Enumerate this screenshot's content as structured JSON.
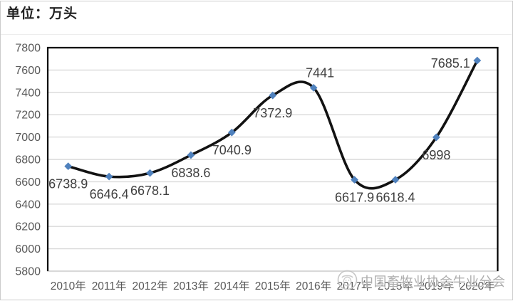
{
  "unit_label": "单位：万头",
  "watermark": {
    "text": "中国畜牧业协会牛业分会",
    "logo_icon": "association-emblem-icon"
  },
  "chart_data": {
    "type": "line",
    "smooth": true,
    "title": "单位：万头",
    "categories": [
      "2010年",
      "2011年",
      "2012年",
      "2013年",
      "2014年",
      "2015年",
      "2016年",
      "2017年",
      "2018年",
      "2019年",
      "2020年"
    ],
    "values": [
      6738.9,
      6646.4,
      6678.1,
      6838.6,
      7040.9,
      7372.9,
      7441,
      6617.9,
      6618.4,
      6998,
      7685.1
    ],
    "data_labels": [
      "6738.9",
      "6646.4",
      "6678.1",
      "6838.6",
      "7040.9",
      "7372.9",
      "7441",
      "6617.9",
      "6618.4",
      "6998",
      "7685.1"
    ],
    "label_placement": [
      "below",
      "below",
      "below",
      "below",
      "below",
      "below",
      "above",
      "below",
      "below",
      "below",
      "left"
    ],
    "ylim": [
      5800,
      7800
    ],
    "yticks": [
      5800,
      6000,
      6200,
      6400,
      6600,
      6800,
      7000,
      7200,
      7400,
      7600,
      7800
    ],
    "grid": "horizontal",
    "legend": "none",
    "line_color": "#121212",
    "marker": "diamond",
    "marker_color": "#4F81BD",
    "colors": {
      "grid": "#D9D9D9",
      "axis_line": "#D9D9D9",
      "plot_border": "#000000",
      "axis_text": "#595959",
      "label_text": "#3F3F3F"
    }
  }
}
